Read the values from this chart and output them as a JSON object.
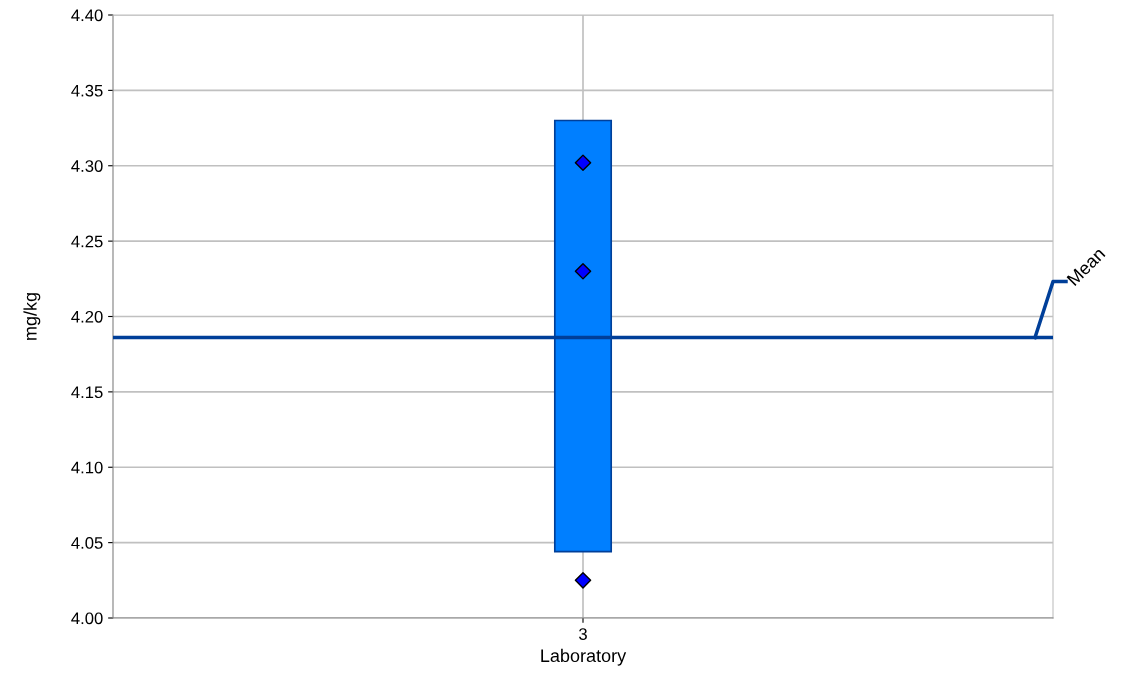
{
  "chart_data": {
    "type": "bar",
    "xlabel": "Laboratory",
    "ylabel": "mg/kg",
    "categories": [
      "3"
    ],
    "series": [
      {
        "color": "#007fff",
        "base": [
          4.044
        ],
        "values": [
          0.286
        ]
      },
      {
        "type": "scatter",
        "color": "#0000ff",
        "x": [
          "3",
          "3",
          "3"
        ],
        "values": [
          4.302,
          4.23,
          4.025
        ],
        "marker": "diamond"
      }
    ],
    "ylim": [
      4.0,
      4.4
    ],
    "yticks": [
      {
        "value": 4.0,
        "label": "4.00"
      },
      {
        "value": 4.05,
        "label": "4.05"
      },
      {
        "value": 4.1,
        "label": "4.10"
      },
      {
        "value": 4.15,
        "label": "4.15"
      },
      {
        "value": 4.2,
        "label": "4.20"
      },
      {
        "value": 4.25,
        "label": "4.25"
      },
      {
        "value": 4.3,
        "label": "4.30"
      },
      {
        "value": 4.35,
        "label": "4.35"
      },
      {
        "value": 4.4,
        "label": "4.40"
      }
    ],
    "ref_lines": [
      {
        "axis": "y",
        "value": 4.186,
        "label": "Mean",
        "color": "#003f99"
      }
    ],
    "grid": true
  }
}
